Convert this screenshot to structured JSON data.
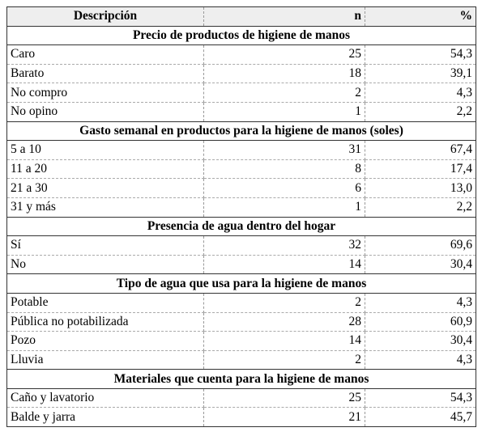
{
  "table": {
    "columns": [
      "Descripción",
      "n",
      "%"
    ],
    "sections": [
      {
        "title": "Precio de productos de higiene de manos",
        "rows": [
          [
            "Caro",
            25,
            "54,3"
          ],
          [
            "Barato",
            18,
            "39,1"
          ],
          [
            "No compro",
            2,
            "4,3"
          ],
          [
            "No opino",
            1,
            "2,2"
          ]
        ]
      },
      {
        "title": "Gasto semanal en productos para la higiene de manos (soles)",
        "rows": [
          [
            "5 a 10",
            31,
            "67,4"
          ],
          [
            "11 a 20",
            8,
            "17,4"
          ],
          [
            "21 a 30",
            6,
            "13,0"
          ],
          [
            "31 y más",
            1,
            "2,2"
          ]
        ]
      },
      {
        "title": "Presencia de agua dentro del hogar",
        "rows": [
          [
            "Sí",
            32,
            "69,6"
          ],
          [
            "No",
            14,
            "30,4"
          ]
        ]
      },
      {
        "title": "Tipo de agua que usa para la higiene de manos",
        "rows": [
          [
            "Potable",
            2,
            "4,3"
          ],
          [
            "Pública no potabilizada",
            28,
            "60,9"
          ],
          [
            "Pozo",
            14,
            "30,4"
          ],
          [
            "Lluvia",
            2,
            "4,3"
          ]
        ]
      },
      {
        "title": "Materiales que cuenta para la higiene de manos",
        "rows": [
          [
            "Caño y lavatorio",
            25,
            "54,3"
          ],
          [
            "Balde y jarra",
            21,
            "45,7"
          ]
        ]
      }
    ]
  }
}
